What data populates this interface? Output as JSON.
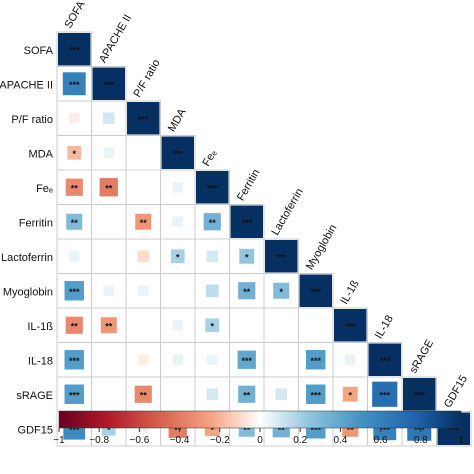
{
  "chart_data": {
    "type": "heatmap",
    "variables": [
      "SOFA",
      "APACHE II",
      "P/F ratio",
      "MDA",
      "Feₑ",
      "Ferritin",
      "Lactoferrin",
      "Myoglobin",
      "IL-1ß",
      "IL-18",
      "sRAGE",
      "GDF15"
    ],
    "values": [
      [
        1
      ],
      [
        0.6,
        1
      ],
      [
        -0.05,
        0.1,
        1
      ],
      [
        -0.2,
        0.05,
        0.0,
        1
      ],
      [
        -0.35,
        -0.4,
        0.0,
        0.05,
        1
      ],
      [
        0.3,
        0.0,
        -0.3,
        0.05,
        0.35,
        1
      ],
      [
        0.05,
        0.0,
        -0.1,
        0.2,
        0.1,
        0.25,
        1
      ],
      [
        0.45,
        0.05,
        0.05,
        0.0,
        0.15,
        0.35,
        0.3,
        1
      ],
      [
        -0.35,
        -0.3,
        0.0,
        0.05,
        0.2,
        0.0,
        0.0,
        0.0,
        1
      ],
      [
        0.45,
        0.0,
        -0.05,
        0.05,
        0.05,
        0.4,
        0.0,
        0.45,
        0.05,
        1
      ],
      [
        0.45,
        0.0,
        -0.35,
        0.0,
        0.1,
        0.35,
        0.1,
        0.45,
        -0.25,
        0.7,
        1
      ],
      [
        0.55,
        0.2,
        0.05,
        -0.4,
        -0.25,
        0.3,
        0.35,
        0.45,
        -0.3,
        0.6,
        0.65,
        1
      ]
    ],
    "significance": [
      [
        "***"
      ],
      [
        "***",
        "***"
      ],
      [
        "",
        "",
        "***"
      ],
      [
        "*",
        "",
        "",
        "***"
      ],
      [
        "**",
        "**",
        "",
        "",
        "***"
      ],
      [
        "**",
        "",
        "**",
        "",
        "**",
        "***"
      ],
      [
        "",
        "",
        "",
        "*",
        "",
        "*",
        "***"
      ],
      [
        "***",
        "",
        "",
        "",
        "",
        "**",
        "*",
        "***"
      ],
      [
        "**",
        "**",
        "",
        "",
        "*",
        "",
        "",
        "",
        "***"
      ],
      [
        "***",
        "",
        "",
        "",
        "",
        "***",
        "",
        "***",
        "",
        "***"
      ],
      [
        "***",
        "",
        "**",
        "",
        "",
        "**",
        "",
        "***",
        "*",
        "***",
        "***"
      ],
      [
        "***",
        "*",
        "",
        "**",
        "*",
        "**",
        "**",
        "***",
        "**",
        "***",
        "***",
        "***"
      ]
    ],
    "colorbar": {
      "min": -1,
      "max": 1,
      "tick_labels": [
        "−1",
        "−0.8",
        "−0.6",
        "−0.4",
        "−0.2",
        "0",
        "0.2",
        "0.4",
        "0.6",
        "0.8",
        "1"
      ]
    }
  },
  "colors": {
    "neg": "#67001f",
    "mid": "#ffffff",
    "pos": "#053061",
    "grid": "#cccccc"
  }
}
